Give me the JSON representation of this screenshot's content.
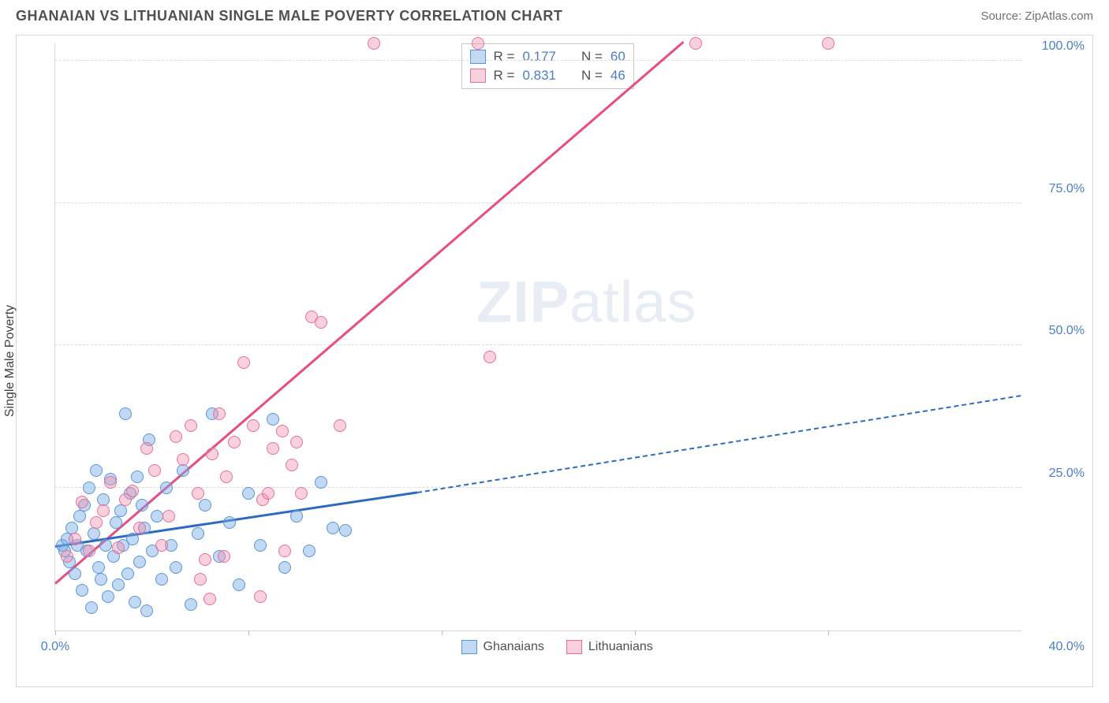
{
  "header": {
    "title": "GHANAIAN VS LITHUANIAN SINGLE MALE POVERTY CORRELATION CHART",
    "source": "Source: ZipAtlas.com"
  },
  "chart": {
    "type": "scatter",
    "ylabel": "Single Male Poverty",
    "watermark_bold": "ZIP",
    "watermark_rest": "atlas",
    "background_color": "#ffffff",
    "grid_color": "#dcdcdc",
    "border_color": "#d8d8d8",
    "xlim": [
      0,
      40
    ],
    "ylim": [
      0,
      103
    ],
    "x_ticks": [
      0,
      8,
      16,
      24,
      32
    ],
    "x_tick_labels": [
      "0.0%",
      "",
      "",
      "",
      ""
    ],
    "x_corner_label": "40.0%",
    "y_ticks": [
      25,
      50,
      75,
      100
    ],
    "y_tick_labels": [
      "25.0%",
      "50.0%",
      "75.0%",
      "100.0%"
    ],
    "series": [
      {
        "name": "Ghanaians",
        "marker_fill": "rgba(120,170,230,0.45)",
        "marker_stroke": "#5a95d8",
        "marker_radius": 8,
        "R": "0.177",
        "N": "60",
        "regression": {
          "color": "#2e6bc0",
          "solid": {
            "x1": 0,
            "y1": 14.5,
            "x2": 15,
            "y2": 24
          },
          "dashed": {
            "x1": 15,
            "y1": 24,
            "x2": 40,
            "y2": 41
          }
        },
        "points": [
          [
            0.3,
            15
          ],
          [
            0.4,
            14
          ],
          [
            0.5,
            16
          ],
          [
            0.6,
            12
          ],
          [
            0.7,
            18
          ],
          [
            0.8,
            10
          ],
          [
            0.9,
            15
          ],
          [
            1.0,
            20
          ],
          [
            1.1,
            7
          ],
          [
            1.2,
            22
          ],
          [
            1.3,
            14
          ],
          [
            1.4,
            25
          ],
          [
            1.5,
            4
          ],
          [
            1.6,
            17
          ],
          [
            1.7,
            28
          ],
          [
            1.8,
            11
          ],
          [
            1.9,
            9
          ],
          [
            2.0,
            23
          ],
          [
            2.1,
            15
          ],
          [
            2.2,
            6
          ],
          [
            2.3,
            26.5
          ],
          [
            2.4,
            13
          ],
          [
            2.5,
            19
          ],
          [
            2.6,
            8
          ],
          [
            2.7,
            21
          ],
          [
            2.8,
            15
          ],
          [
            2.9,
            38
          ],
          [
            3.0,
            10
          ],
          [
            3.1,
            24
          ],
          [
            3.2,
            16
          ],
          [
            3.3,
            5
          ],
          [
            3.4,
            27
          ],
          [
            3.5,
            12
          ],
          [
            3.6,
            22
          ],
          [
            3.7,
            18
          ],
          [
            3.8,
            3.5
          ],
          [
            3.9,
            33.5
          ],
          [
            4.0,
            14
          ],
          [
            4.2,
            20
          ],
          [
            4.4,
            9
          ],
          [
            4.6,
            25
          ],
          [
            4.8,
            15
          ],
          [
            5.0,
            11
          ],
          [
            5.3,
            28
          ],
          [
            5.6,
            4.5
          ],
          [
            5.9,
            17
          ],
          [
            6.2,
            22
          ],
          [
            6.5,
            38
          ],
          [
            6.8,
            13
          ],
          [
            7.2,
            19
          ],
          [
            7.6,
            8
          ],
          [
            8.0,
            24
          ],
          [
            8.5,
            15
          ],
          [
            9.0,
            37
          ],
          [
            9.5,
            11
          ],
          [
            10.0,
            20
          ],
          [
            10.5,
            14
          ],
          [
            11.0,
            26
          ],
          [
            11.5,
            18
          ],
          [
            12.0,
            17.5
          ]
        ]
      },
      {
        "name": "Lithuanians",
        "marker_fill": "rgba(240,140,170,0.40)",
        "marker_stroke": "#e86f9a",
        "marker_radius": 8,
        "R": "0.831",
        "N": "46",
        "regression": {
          "color": "#e94b85",
          "solid": {
            "x1": 0,
            "y1": 8,
            "x2": 26,
            "y2": 103
          },
          "dashed": null
        },
        "points": [
          [
            0.5,
            13
          ],
          [
            0.8,
            16
          ],
          [
            1.1,
            22.5
          ],
          [
            1.4,
            14
          ],
          [
            1.7,
            19
          ],
          [
            2.0,
            21
          ],
          [
            2.3,
            26
          ],
          [
            2.6,
            14.5
          ],
          [
            2.9,
            23
          ],
          [
            3.2,
            24.5
          ],
          [
            3.5,
            18
          ],
          [
            3.8,
            32
          ],
          [
            4.1,
            28
          ],
          [
            4.4,
            15
          ],
          [
            4.7,
            20
          ],
          [
            5.0,
            34
          ],
          [
            5.3,
            30
          ],
          [
            5.6,
            36
          ],
          [
            5.9,
            24
          ],
          [
            6.2,
            12.5
          ],
          [
            6.5,
            31
          ],
          [
            6.8,
            38
          ],
          [
            7.1,
            27
          ],
          [
            7.4,
            33
          ],
          [
            7.8,
            47
          ],
          [
            8.2,
            36
          ],
          [
            8.6,
            23
          ],
          [
            9.0,
            32
          ],
          [
            9.4,
            35
          ],
          [
            9.8,
            29
          ],
          [
            8.5,
            6
          ],
          [
            10.2,
            24
          ],
          [
            10.6,
            55
          ],
          [
            11.0,
            54
          ],
          [
            7.0,
            13
          ],
          [
            11.8,
            36
          ],
          [
            6.0,
            9
          ],
          [
            13.2,
            103
          ],
          [
            17.5,
            103
          ],
          [
            18.0,
            48
          ],
          [
            9.5,
            14
          ],
          [
            6.4,
            5.5
          ],
          [
            8.8,
            24
          ],
          [
            26.5,
            103
          ],
          [
            32.0,
            103
          ],
          [
            10.0,
            33
          ]
        ]
      }
    ],
    "legend": {
      "corr_box_border": "#c8c8c8",
      "text_color": "#505050",
      "value_color": "#4a7ec9",
      "swatch_blue_fill": "rgba(120,170,230,0.45)",
      "swatch_blue_stroke": "#5a95d8",
      "swatch_pink_fill": "rgba(240,140,170,0.40)",
      "swatch_pink_stroke": "#e86f9a",
      "r_label": "R =",
      "n_label": "N ="
    }
  }
}
